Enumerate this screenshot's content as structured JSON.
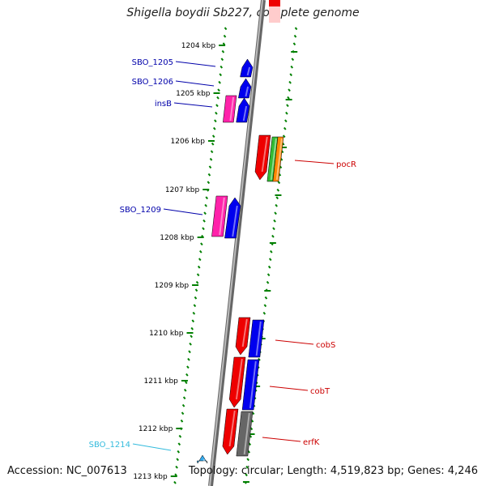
{
  "title": "Shigella boydii Sb227, complete genome",
  "footer": {
    "accession": "Accession: NC_007613",
    "topology": "Topology: circular; Length: 4,519,823 bp; Genes: 4,246"
  },
  "colors": {
    "tick": "#008000",
    "backbone": "#888888",
    "blue_label": "#0000aa",
    "red_label": "#cc0000",
    "cyan_label": "#33bbdd",
    "gene_blue": "#0000ee",
    "gene_red": "#ee0000",
    "gene_pink": "#ff22aa",
    "gene_green": "#33bb33",
    "gene_orange": "#ff8800",
    "gene_gray": "#666666",
    "gene_cyan": "#33aaee"
  },
  "kbp_labels": [
    "1204 kbp",
    "1205 kbp",
    "1206 kbp",
    "1207 kbp",
    "1208 kbp",
    "1209 kbp",
    "1210 kbp",
    "1211 kbp",
    "1212 kbp",
    "1213 kbp"
  ],
  "genes_minus_strand": [
    {
      "label": "SBO_1205",
      "color": "blue",
      "direction": "up"
    },
    {
      "label": "SBO_1206",
      "color": "blue",
      "direction": "up"
    },
    {
      "label": "insB",
      "color": "blue",
      "direction": "up"
    },
    {
      "label": "",
      "color": "pink",
      "direction": "none"
    },
    {
      "label": "SBO_1209",
      "color": "blue",
      "direction": "up"
    },
    {
      "label": "",
      "color": "pink",
      "direction": "none"
    },
    {
      "label": "",
      "color": "red",
      "direction": "down"
    },
    {
      "label": "",
      "color": "red",
      "direction": "down"
    },
    {
      "label": "",
      "color": "red",
      "direction": "down"
    },
    {
      "label": "SBO_1214",
      "color": "cyan",
      "direction": "up"
    }
  ],
  "genes_plus_strand": [
    {
      "label": "pocR",
      "color": "red",
      "direction": "down"
    },
    {
      "label": "",
      "color": "green",
      "direction": "none"
    },
    {
      "label": "",
      "color": "orange",
      "direction": "none"
    },
    {
      "label": "cobS",
      "color": "blue",
      "direction": "none"
    },
    {
      "label": "cobT",
      "color": "blue",
      "direction": "none"
    },
    {
      "label": "erfK",
      "color": "gray",
      "direction": "none"
    }
  ],
  "labels": {
    "left": [
      "SBO_1205",
      "SBO_1206",
      "insB",
      "SBO_1209",
      "SBO_1214"
    ],
    "right": [
      "pocR",
      "cobS",
      "cobT",
      "erfK"
    ]
  }
}
